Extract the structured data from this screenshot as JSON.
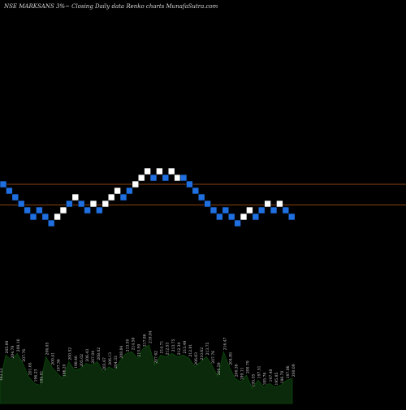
{
  "header": {
    "title": "NSE MARKSANS 3%~  Closing Daily data  Renko  charts MunafaSutra.com"
  },
  "colors": {
    "background": "#000000",
    "up_brick": "#ffffff",
    "down_brick": "#1f6fe0",
    "brick_border": "#000000",
    "reference_line": "#8b4513",
    "volume_fill": "#0b2a0b",
    "volume_edge": "#0a4a0a",
    "label_color": "#cfcfcf"
  },
  "chart_data": {
    "type": "renko",
    "brick_size_pct": 3,
    "reference_levels": [
      212.0,
      202.5
    ],
    "bricks": [
      {
        "dir": "down",
        "value": 212.0
      },
      {
        "dir": "down",
        "value": 209.0
      },
      {
        "dir": "down",
        "value": 206.0
      },
      {
        "dir": "down",
        "value": 203.0
      },
      {
        "dir": "down",
        "value": 200.0
      },
      {
        "dir": "down",
        "value": 197.0
      },
      {
        "dir": "down",
        "value": 200.0
      },
      {
        "dir": "down",
        "value": 197.0
      },
      {
        "dir": "down",
        "value": 194.0
      },
      {
        "dir": "up",
        "value": 197.0
      },
      {
        "dir": "up",
        "value": 200.0
      },
      {
        "dir": "down",
        "value": 203.0
      },
      {
        "dir": "up",
        "value": 206.0
      },
      {
        "dir": "down",
        "value": 203.0
      },
      {
        "dir": "down",
        "value": 200.0
      },
      {
        "dir": "up",
        "value": 203.0
      },
      {
        "dir": "down",
        "value": 200.0
      },
      {
        "dir": "up",
        "value": 203.0
      },
      {
        "dir": "up",
        "value": 206.0
      },
      {
        "dir": "up",
        "value": 209.0
      },
      {
        "dir": "down",
        "value": 206.0
      },
      {
        "dir": "down",
        "value": 209.0
      },
      {
        "dir": "up",
        "value": 212.0
      },
      {
        "dir": "up",
        "value": 215.0
      },
      {
        "dir": "up",
        "value": 218.0
      },
      {
        "dir": "down",
        "value": 215.0
      },
      {
        "dir": "up",
        "value": 218.0
      },
      {
        "dir": "down",
        "value": 215.0
      },
      {
        "dir": "up",
        "value": 218.0
      },
      {
        "dir": "up",
        "value": 215.0
      },
      {
        "dir": "down",
        "value": 215.0
      },
      {
        "dir": "down",
        "value": 212.0
      },
      {
        "dir": "down",
        "value": 209.0
      },
      {
        "dir": "down",
        "value": 206.0
      },
      {
        "dir": "down",
        "value": 203.0
      },
      {
        "dir": "down",
        "value": 200.0
      },
      {
        "dir": "down",
        "value": 197.0
      },
      {
        "dir": "down",
        "value": 200.0
      },
      {
        "dir": "down",
        "value": 197.0
      },
      {
        "dir": "down",
        "value": 194.0
      },
      {
        "dir": "up",
        "value": 197.0
      },
      {
        "dir": "up",
        "value": 200.0
      },
      {
        "dir": "down",
        "value": 197.0
      },
      {
        "dir": "down",
        "value": 200.0
      },
      {
        "dir": "up",
        "value": 203.0
      },
      {
        "dir": "down",
        "value": 200.0
      },
      {
        "dir": "up",
        "value": 203.0
      },
      {
        "dir": "down",
        "value": 200.0
      },
      {
        "dir": "down",
        "value": 197.0
      }
    ],
    "volume_labels": [
      "193.53",
      "205.89",
      "204.79",
      "209.16",
      "207.76",
      "201.65",
      "196.23",
      "195.91",
      "206.05",
      "200.41",
      "197.36",
      "196.20",
      "200.52",
      "198.46",
      "205.02",
      "206.43",
      "207.04",
      "208.02",
      "203.67",
      "206.13",
      "204.33",
      "208.84",
      "213.50",
      "214.58",
      "210.59",
      "217.86",
      "218.84",
      "207.62",
      "214.71",
      "212.53",
      "213.75",
      "212.34",
      "213.49",
      "212.81",
      "206.63",
      "210.62",
      "213.75",
      "207.76",
      "200.59",
      "216.47",
      "204.89",
      "200.36",
      "199.11",
      "200.79",
      "195.35",
      "197.51",
      "195.76",
      "197.48",
      "195.85",
      "196.70",
      "197.86",
      "200.09"
    ],
    "volume_values": [
      25,
      58,
      52,
      60,
      48,
      32,
      24,
      22,
      56,
      44,
      36,
      30,
      50,
      40,
      42,
      48,
      46,
      50,
      38,
      44,
      40,
      52,
      60,
      62,
      54,
      66,
      70,
      46,
      58,
      56,
      60,
      56,
      58,
      54,
      44,
      50,
      56,
      46,
      32,
      62,
      44,
      30,
      26,
      34,
      18,
      28,
      20,
      24,
      20,
      22,
      28,
      30
    ]
  }
}
